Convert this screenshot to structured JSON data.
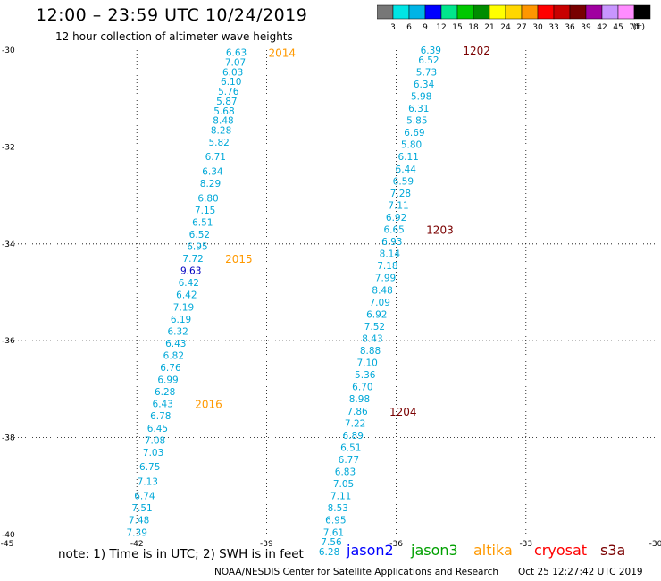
{
  "title": "12:00 – 23:59 UTC 10/24/2019",
  "subtitle": "12 hour collection of altimeter wave heights",
  "colorbar": {
    "colors": [
      "#777777",
      "#00e5e5",
      "#00b4e6",
      "#0000ff",
      "#00e68c",
      "#00c800",
      "#008c00",
      "#ffff00",
      "#ffd700",
      "#ff9600",
      "#ff0000",
      "#c80000",
      "#780000",
      "#a000a0",
      "#c896ff",
      "#ff8cff",
      "#000000"
    ],
    "labels": [
      "3",
      "6",
      "9",
      "12",
      "15",
      "18",
      "21",
      "24",
      "27",
      "30",
      "33",
      "36",
      "39",
      "42",
      "45",
      "70"
    ],
    "unit": "(ft)"
  },
  "axes": {
    "x_ticks": [
      "-45",
      "-42",
      "-39",
      "-36",
      "-33",
      "-30"
    ],
    "y_ticks": [
      "-30",
      "-32",
      "-34",
      "-36",
      "-38",
      "-40"
    ]
  },
  "passes": [
    {
      "label": "2014",
      "label_color": "#ff9900",
      "points": [
        {
          "lat": -30.05,
          "lon": -39.7,
          "v": "6.63"
        },
        {
          "lat": -30.25,
          "lon": -39.72,
          "v": "7.07"
        },
        {
          "lat": -30.45,
          "lon": -39.78,
          "v": "6.03"
        },
        {
          "lat": -30.65,
          "lon": -39.82,
          "v": "6.10"
        },
        {
          "lat": -30.85,
          "lon": -39.88,
          "v": "5.76"
        },
        {
          "lat": -31.05,
          "lon": -39.92,
          "v": "5.87"
        },
        {
          "lat": -31.25,
          "lon": -39.98,
          "v": "5.68"
        },
        {
          "lat": -31.45,
          "lon": -40.0,
          "v": "8.48"
        },
        {
          "lat": -31.65,
          "lon": -40.05,
          "v": "8.28"
        },
        {
          "lat": -31.9,
          "lon": -40.1,
          "v": "5.82"
        },
        {
          "lat": -32.2,
          "lon": -40.18,
          "v": "6.71"
        },
        {
          "lat": -32.5,
          "lon": -40.25,
          "v": "6.34"
        },
        {
          "lat": -32.75,
          "lon": -40.3,
          "v": "8.29"
        },
        {
          "lat": -33.05,
          "lon": -40.35,
          "v": "6.80"
        },
        {
          "lat": -33.3,
          "lon": -40.42,
          "v": "7.15"
        },
        {
          "lat": -33.55,
          "lon": -40.48,
          "v": "6.51"
        },
        {
          "lat": -33.8,
          "lon": -40.55,
          "v": "6.52"
        },
        {
          "lat": -34.05,
          "lon": -40.6,
          "v": "6.95"
        }
      ]
    },
    {
      "label": "2015",
      "label_color": "#ff9900",
      "points": [
        {
          "lat": -34.3,
          "lon": -40.7,
          "v": "7.72"
        },
        {
          "lat": -34.55,
          "lon": -40.75,
          "v": "9.63",
          "c": "#0000c0"
        },
        {
          "lat": -34.8,
          "lon": -40.8,
          "v": "6.42"
        },
        {
          "lat": -35.05,
          "lon": -40.85,
          "v": "6.42"
        },
        {
          "lat": -35.3,
          "lon": -40.92,
          "v": "7.19"
        },
        {
          "lat": -35.55,
          "lon": -40.98,
          "v": "6.19"
        },
        {
          "lat": -35.8,
          "lon": -41.05,
          "v": "6.32"
        },
        {
          "lat": -36.05,
          "lon": -41.1,
          "v": "6.43"
        },
        {
          "lat": -36.3,
          "lon": -41.15,
          "v": "6.82"
        },
        {
          "lat": -36.55,
          "lon": -41.22,
          "v": "6.76"
        },
        {
          "lat": -36.8,
          "lon": -41.28,
          "v": "6.99"
        },
        {
          "lat": -37.05,
          "lon": -41.35,
          "v": "6.28"
        }
      ]
    },
    {
      "label": "2016",
      "label_color": "#ff9900",
      "points": [
        {
          "lat": -37.3,
          "lon": -41.4,
          "v": "6.43"
        },
        {
          "lat": -37.55,
          "lon": -41.45,
          "v": "6.78"
        },
        {
          "lat": -37.8,
          "lon": -41.52,
          "v": "6.45"
        },
        {
          "lat": -38.05,
          "lon": -41.58,
          "v": "7.08"
        },
        {
          "lat": -38.3,
          "lon": -41.62,
          "v": "7.03"
        },
        {
          "lat": -38.6,
          "lon": -41.7,
          "v": "6.75"
        },
        {
          "lat": -38.9,
          "lon": -41.75,
          "v": "7.13"
        },
        {
          "lat": -39.2,
          "lon": -41.82,
          "v": "6.74"
        },
        {
          "lat": -39.45,
          "lon": -41.88,
          "v": "7.51"
        },
        {
          "lat": -39.7,
          "lon": -41.95,
          "v": "7.48"
        },
        {
          "lat": -39.95,
          "lon": -42.0,
          "v": "7.39"
        }
      ]
    },
    {
      "label": "1202",
      "label_color": "#7a0000",
      "points": [
        {
          "lat": -30.0,
          "lon": -35.2,
          "v": "6.39"
        },
        {
          "lat": -30.2,
          "lon": -35.25,
          "v": "6.52"
        },
        {
          "lat": -30.45,
          "lon": -35.3,
          "v": "5.73"
        },
        {
          "lat": -30.7,
          "lon": -35.36,
          "v": "6.34"
        },
        {
          "lat": -30.95,
          "lon": -35.42,
          "v": "5.98"
        },
        {
          "lat": -31.2,
          "lon": -35.48,
          "v": "6.31"
        },
        {
          "lat": -31.45,
          "lon": -35.52,
          "v": "5.85"
        },
        {
          "lat": -31.7,
          "lon": -35.58,
          "v": "6.69"
        },
        {
          "lat": -31.95,
          "lon": -35.65,
          "v": "5.80"
        },
        {
          "lat": -32.2,
          "lon": -35.72,
          "v": "6.11"
        },
        {
          "lat": -32.45,
          "lon": -35.78,
          "v": "6.44"
        },
        {
          "lat": -32.7,
          "lon": -35.84,
          "v": "6.59"
        },
        {
          "lat": -32.95,
          "lon": -35.9,
          "v": "7.28"
        },
        {
          "lat": -33.2,
          "lon": -35.95,
          "v": "7.11"
        },
        {
          "lat": -33.45,
          "lon": -36.0,
          "v": "6.92"
        }
      ]
    },
    {
      "label": "1203",
      "label_color": "#7a0000",
      "points": [
        {
          "lat": -33.7,
          "lon": -36.05,
          "v": "6.65"
        },
        {
          "lat": -33.95,
          "lon": -36.1,
          "v": "6.93"
        },
        {
          "lat": -34.2,
          "lon": -36.15,
          "v": "8.14"
        },
        {
          "lat": -34.45,
          "lon": -36.2,
          "v": "7.18"
        },
        {
          "lat": -34.7,
          "lon": -36.25,
          "v": "7.99"
        },
        {
          "lat": -34.95,
          "lon": -36.32,
          "v": "8.48"
        },
        {
          "lat": -35.2,
          "lon": -36.38,
          "v": "7.09"
        },
        {
          "lat": -35.45,
          "lon": -36.45,
          "v": "6.92"
        },
        {
          "lat": -35.7,
          "lon": -36.5,
          "v": "7.52"
        },
        {
          "lat": -35.95,
          "lon": -36.55,
          "v": "8.43"
        },
        {
          "lat": -36.2,
          "lon": -36.6,
          "v": "8.88"
        },
        {
          "lat": -36.45,
          "lon": -36.67,
          "v": "7.10"
        },
        {
          "lat": -36.7,
          "lon": -36.72,
          "v": "5.36"
        },
        {
          "lat": -36.95,
          "lon": -36.78,
          "v": "6.70"
        },
        {
          "lat": -37.2,
          "lon": -36.85,
          "v": "8.98"
        }
      ]
    },
    {
      "label": "1204",
      "label_color": "#7a0000",
      "points": [
        {
          "lat": -37.45,
          "lon": -36.9,
          "v": "7.86"
        },
        {
          "lat": -37.7,
          "lon": -36.95,
          "v": "7.22"
        },
        {
          "lat": -37.95,
          "lon": -37.0,
          "v": "6.89"
        },
        {
          "lat": -38.2,
          "lon": -37.05,
          "v": "6.51"
        },
        {
          "lat": -38.45,
          "lon": -37.1,
          "v": "6.77"
        },
        {
          "lat": -38.7,
          "lon": -37.18,
          "v": "6.83"
        },
        {
          "lat": -38.95,
          "lon": -37.22,
          "v": "7.05"
        },
        {
          "lat": -39.2,
          "lon": -37.28,
          "v": "7.11"
        },
        {
          "lat": -39.45,
          "lon": -37.35,
          "v": "8.53"
        },
        {
          "lat": -39.7,
          "lon": -37.4,
          "v": "6.95"
        },
        {
          "lat": -39.95,
          "lon": -37.45,
          "v": "7.61"
        },
        {
          "lat": -40.15,
          "lon": -37.5,
          "v": "7.56"
        },
        {
          "lat": -40.35,
          "lon": -37.55,
          "v": "6.28"
        }
      ]
    }
  ],
  "note": "note:  1) Time is in UTC;  2) SWH is in feet",
  "legend": [
    {
      "name": "jason2",
      "color": "#0000ff"
    },
    {
      "name": "jason3",
      "color": "#00a000"
    },
    {
      "name": "altika",
      "color": "#ff9900"
    },
    {
      "name": "cryosat",
      "color": "#ff0000"
    },
    {
      "name": "s3a",
      "color": "#7a0000"
    }
  ],
  "credit": "NOAA/NESDIS Center for Satellite Applications and Research",
  "credit_time": "Oct 25 12:27:42 UTC 2019"
}
